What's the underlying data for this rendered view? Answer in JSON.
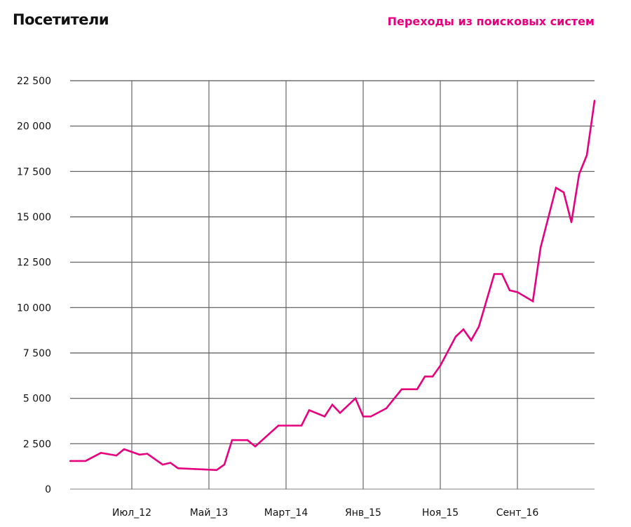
{
  "chart_data": {
    "type": "line",
    "title": "Посетители",
    "xlabel": "",
    "ylabel": "",
    "xlim": [
      "2011-11",
      "2017-07"
    ],
    "ylim": [
      0,
      22500
    ],
    "grid": true,
    "legend_position": "top-right",
    "x_ticks": [
      {
        "date": "2012-07",
        "label": "Июл_12"
      },
      {
        "date": "2013-05",
        "label": "Май_13"
      },
      {
        "date": "2014-03",
        "label": "Март_14"
      },
      {
        "date": "2015-01",
        "label": "Янв_15"
      },
      {
        "date": "2015-11",
        "label": "Ноя_15"
      },
      {
        "date": "2016-09",
        "label": "Сент_16"
      }
    ],
    "y_ticks": [
      {
        "value": 0,
        "label": "0"
      },
      {
        "value": 2500,
        "label": "2 500"
      },
      {
        "value": 5000,
        "label": "5 000"
      },
      {
        "value": 7500,
        "label": "7 500"
      },
      {
        "value": 10000,
        "label": "10 000"
      },
      {
        "value": 12500,
        "label": "12 500"
      },
      {
        "value": 15000,
        "label": "15 000"
      },
      {
        "value": 17500,
        "label": "17 500"
      },
      {
        "value": 20000,
        "label": "20 000"
      },
      {
        "value": 22500,
        "label": "22 500"
      }
    ],
    "series": [
      {
        "name": "Переходы из поисковых систем",
        "color": "#e6007e",
        "x": [
          "2011-11",
          "2012-01",
          "2012-03",
          "2012-05",
          "2012-06",
          "2012-08",
          "2012-09",
          "2012-11",
          "2012-12",
          "2013-01",
          "2013-06",
          "2013-07",
          "2013-08",
          "2013-10",
          "2013-11",
          "2014-02",
          "2014-05",
          "2014-06",
          "2014-08",
          "2014-09",
          "2014-10",
          "2014-12",
          "2015-01",
          "2015-02",
          "2015-04",
          "2015-06",
          "2015-08",
          "2015-09",
          "2015-10",
          "2015-11",
          "2016-01",
          "2016-02",
          "2016-03",
          "2016-04",
          "2016-06",
          "2016-07",
          "2016-08",
          "2016-09",
          "2016-11",
          "2016-12",
          "2017-02",
          "2017-03",
          "2017-04",
          "2017-05",
          "2017-06",
          "2017-07"
        ],
        "values": [
          1550,
          1550,
          2000,
          1850,
          2200,
          1900,
          1950,
          1350,
          1450,
          1150,
          1050,
          1350,
          2700,
          2700,
          2350,
          3500,
          3500,
          4350,
          4000,
          4650,
          4200,
          5000,
          4000,
          4000,
          4450,
          5500,
          5500,
          6200,
          6200,
          6800,
          8400,
          8800,
          8200,
          8950,
          11850,
          11850,
          10950,
          10850,
          10350,
          13300,
          16600,
          16350,
          14700,
          17350,
          18400,
          21400
        ]
      }
    ]
  }
}
